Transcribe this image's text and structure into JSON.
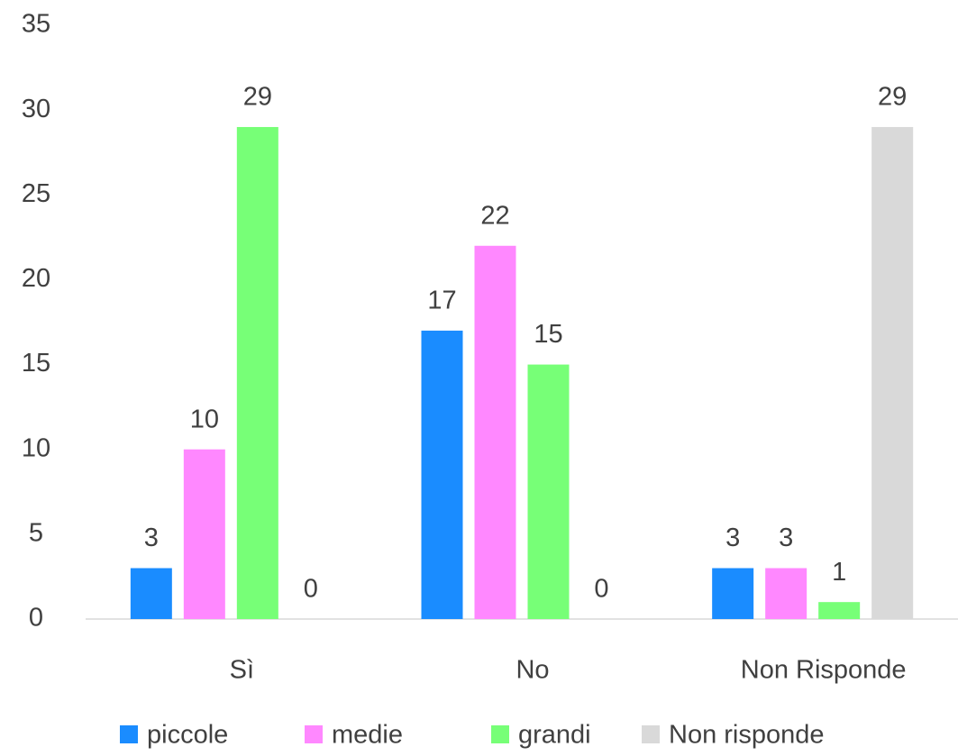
{
  "chart_data": {
    "type": "bar",
    "categories": [
      "Sì",
      "No",
      "Non Risponde"
    ],
    "series": [
      {
        "name": "piccole",
        "color": "#1a8cff",
        "values": [
          3,
          17,
          3
        ]
      },
      {
        "name": "medie",
        "color": "#ff88ff",
        "values": [
          10,
          22,
          3
        ]
      },
      {
        "name": "grandi",
        "color": "#77ff77",
        "values": [
          29,
          15,
          1
        ]
      },
      {
        "name": "Non risponde",
        "color": "#d9d9d9",
        "values": [
          0,
          0,
          29
        ]
      }
    ],
    "ylim": [
      0,
      35
    ],
    "yticks": [
      0,
      5,
      10,
      15,
      20,
      25,
      30,
      35
    ],
    "grid": false,
    "legend": "bottom"
  }
}
